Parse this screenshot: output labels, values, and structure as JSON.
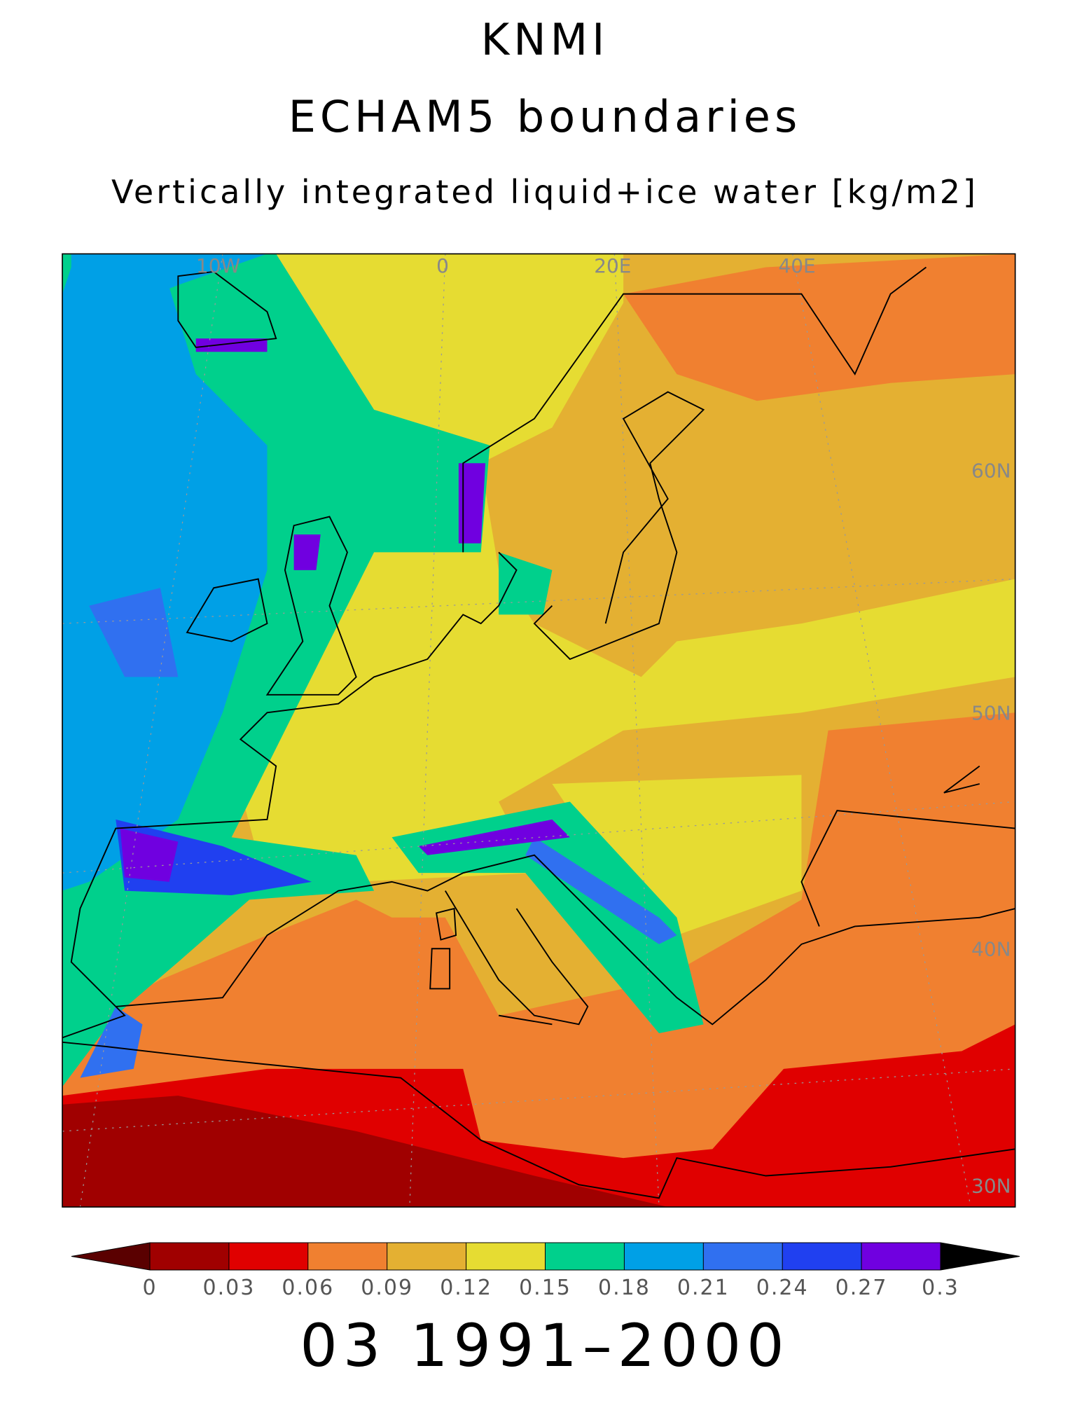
{
  "title": {
    "line1": "KNMI",
    "line2": "ECHAM5 boundaries",
    "line3": "Vertically integrated liquid+ice water [kg/m2]"
  },
  "map": {
    "lon_labels": [
      "10W",
      "0",
      "20E",
      "40E"
    ],
    "lat_labels": [
      "60N",
      "50N",
      "40N",
      "30N"
    ]
  },
  "colorbar": {
    "ticks": [
      0,
      0.03,
      0.06,
      0.09,
      0.12,
      0.15,
      0.18,
      0.21,
      0.24,
      0.27,
      0.3
    ],
    "colors": [
      "#5a0000",
      "#a00000",
      "#e00000",
      "#f08030",
      "#e4b032",
      "#e6dc32",
      "#00d08c",
      "#00a0e6",
      "#3070f0",
      "#2040f0",
      "#7000e0",
      "#a020e0"
    ]
  },
  "footer": "03 1991–2000"
}
